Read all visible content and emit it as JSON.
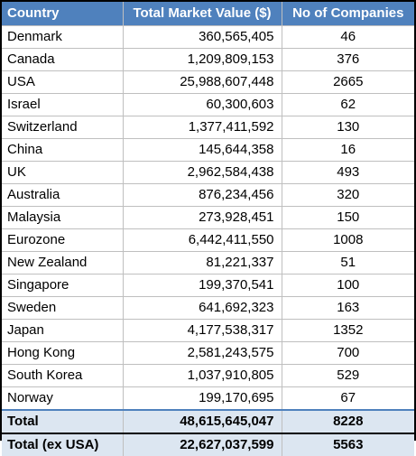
{
  "table": {
    "headers": {
      "country": "Country",
      "value": "Total Market Value ($)",
      "count": "No of Companies"
    },
    "rows": [
      {
        "country": "Denmark",
        "value": "360,565,405",
        "count": "46"
      },
      {
        "country": "Canada",
        "value": "1,209,809,153",
        "count": "376"
      },
      {
        "country": "USA",
        "value": "25,988,607,448",
        "count": "2665"
      },
      {
        "country": "Israel",
        "value": "60,300,603",
        "count": "62"
      },
      {
        "country": "Switzerland",
        "value": "1,377,411,592",
        "count": "130"
      },
      {
        "country": "China",
        "value": "145,644,358",
        "count": "16"
      },
      {
        "country": "UK",
        "value": "2,962,584,438",
        "count": "493"
      },
      {
        "country": "Australia",
        "value": "876,234,456",
        "count": "320"
      },
      {
        "country": "Malaysia",
        "value": "273,928,451",
        "count": "150"
      },
      {
        "country": "Eurozone",
        "value": "6,442,411,550",
        "count": "1008"
      },
      {
        "country": "New Zealand",
        "value": "81,221,337",
        "count": "51"
      },
      {
        "country": "Singapore",
        "value": "199,370,541",
        "count": "100"
      },
      {
        "country": "Sweden",
        "value": "641,692,323",
        "count": "163"
      },
      {
        "country": "Japan",
        "value": "4,177,538,317",
        "count": "1352"
      },
      {
        "country": "Hong Kong",
        "value": "2,581,243,575",
        "count": "700"
      },
      {
        "country": "South Korea",
        "value": "1,037,910,805",
        "count": "529"
      },
      {
        "country": "Norway",
        "value": "199,170,695",
        "count": "67"
      }
    ],
    "total": {
      "country": "Total",
      "value": "48,615,645,047",
      "count": "8228"
    },
    "total_ex_usa": {
      "country": "Total (ex USA)",
      "value": "22,627,037,599",
      "count": "5563"
    }
  },
  "colors": {
    "header_bg": "#4f81bd",
    "header_text": "#ffffff",
    "total_bg": "#dce6f1",
    "gridline": "#bfbfbf"
  }
}
